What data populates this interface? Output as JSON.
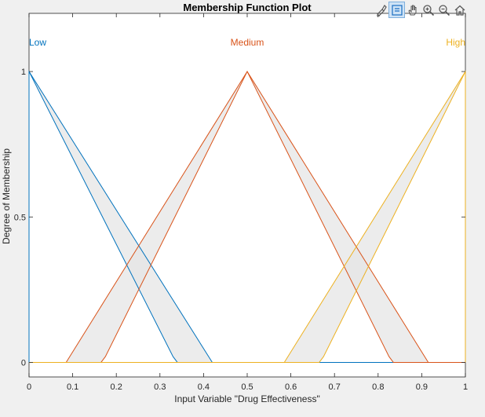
{
  "toolbar": {
    "icons": [
      "brush-icon",
      "datatip-icon",
      "pan-hand-icon",
      "zoom-in-icon",
      "zoom-out-icon",
      "home-icon"
    ]
  },
  "chart_data": {
    "type": "area",
    "title": "Membership Function Plot",
    "xlabel": "Input Variable \"Drug Effectiveness\"",
    "ylabel": "Degree of Membership",
    "xlim": [
      0,
      1
    ],
    "ylim": [
      -0.05,
      1.2
    ],
    "x_ticks": [
      "0",
      "0.1",
      "0.2",
      "0.3",
      "0.4",
      "0.5",
      "0.6",
      "0.7",
      "0.8",
      "0.9",
      "1"
    ],
    "y_ticks": [
      "0",
      "0.5",
      "1"
    ],
    "grid": false,
    "series": [
      {
        "name": "Low",
        "color": "#0072bd",
        "upper": {
          "x": [
            0,
            0,
            0.42,
            1
          ],
          "y": [
            0,
            1,
            0,
            0
          ]
        },
        "lower": {
          "x": [
            0,
            0,
            0.33,
            0.34,
            1
          ],
          "y": [
            0,
            1,
            0.02,
            0,
            0
          ]
        }
      },
      {
        "name": "Medium",
        "color": "#d95319",
        "upper": {
          "x": [
            0,
            0.085,
            0.5,
            0.915,
            1
          ],
          "y": [
            0,
            0,
            1,
            0,
            0
          ]
        },
        "lower": {
          "x": [
            0,
            0.165,
            0.175,
            0.5,
            0.825,
            0.835,
            1
          ],
          "y": [
            0,
            0,
            0.02,
            1,
            0.02,
            0,
            0
          ]
        }
      },
      {
        "name": "High",
        "color": "#edb120",
        "upper": {
          "x": [
            0,
            0.585,
            1,
            1
          ],
          "y": [
            0,
            0,
            1,
            0
          ]
        },
        "lower": {
          "x": [
            0,
            0.665,
            0.675,
            1,
            1
          ],
          "y": [
            0,
            0,
            0.02,
            1,
            0
          ]
        }
      }
    ],
    "fill_color": "#e6e6e6"
  }
}
